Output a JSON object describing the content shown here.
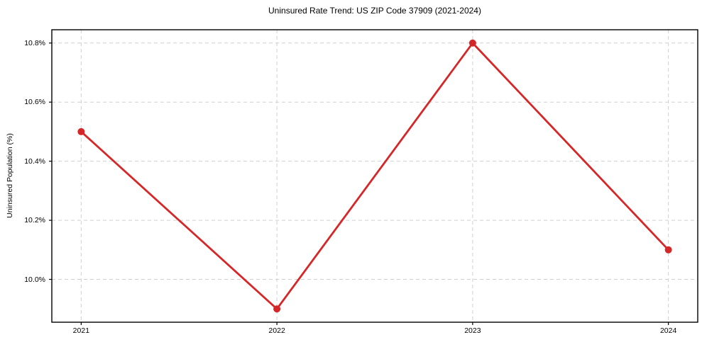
{
  "chart_data": {
    "type": "line",
    "title": "Uninsured Rate Trend: US ZIP Code 37909 (2021-2024)",
    "xlabel": "",
    "ylabel": "Uninsured Population (%)",
    "x": [
      2021,
      2022,
      2023,
      2024
    ],
    "series": [
      {
        "name": "Uninsured Rate",
        "values": [
          10.5,
          9.9,
          10.8,
          10.1
        ],
        "color": "#d62728",
        "marker": "circle"
      }
    ],
    "xlim": [
      2020.85,
      2024.15
    ],
    "ylim": [
      9.855,
      10.845
    ],
    "xticks": [
      2021,
      2022,
      2023,
      2024
    ],
    "xtick_labels": [
      "2021",
      "2022",
      "2023",
      "2024"
    ],
    "yticks": [
      10.0,
      10.2,
      10.4,
      10.6,
      10.8
    ],
    "ytick_labels": [
      "10.0%",
      "10.2%",
      "10.4%",
      "10.6%",
      "10.8%"
    ],
    "grid": true,
    "grid_style": "dashed",
    "grid_color": "#d0d0d0",
    "legend": "none"
  }
}
